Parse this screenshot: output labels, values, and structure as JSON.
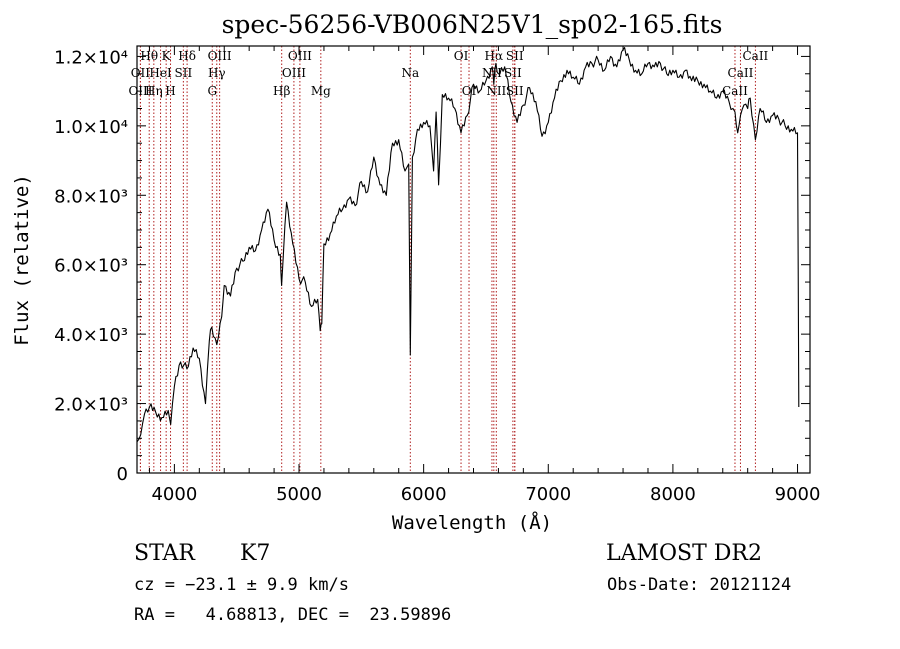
{
  "chart_data": {
    "type": "line",
    "title": "spec-56256-VB006N25V1_sp02-165.fits",
    "xlabel": "Wavelength (Å)",
    "ylabel": "Flux (relative)",
    "xlim": [
      3700,
      9100
    ],
    "ylim": [
      0,
      12300
    ],
    "x_ticks": [
      {
        "value": 4000,
        "label": "4000"
      },
      {
        "value": 5000,
        "label": "5000"
      },
      {
        "value": 6000,
        "label": "6000"
      },
      {
        "value": 7000,
        "label": "7000"
      },
      {
        "value": 8000,
        "label": "8000"
      },
      {
        "value": 9000,
        "label": "9000"
      }
    ],
    "y_ticks": [
      {
        "value": 0,
        "label": "0"
      },
      {
        "value": 2000,
        "label": "2.0×10³"
      },
      {
        "value": 4000,
        "label": "4.0×10³"
      },
      {
        "value": 6000,
        "label": "6.0×10³"
      },
      {
        "value": 8000,
        "label": "8.0×10³"
      },
      {
        "value": 10000,
        "label": "1.0×10⁴"
      },
      {
        "value": 12000,
        "label": "1.2×10⁴"
      }
    ],
    "series": [
      {
        "x": [
          3700,
          3730,
          3760,
          3800,
          3850,
          3900,
          3950,
          3970,
          4000,
          4050,
          4100,
          4150,
          4200,
          4250,
          4280,
          4300,
          4340,
          4380,
          4400,
          4450,
          4500,
          4550,
          4600,
          4650,
          4700,
          4750,
          4800,
          4850,
          4860,
          4900,
          4950,
          5000,
          5050,
          5100,
          5150,
          5170,
          5183,
          5200,
          5250,
          5300,
          5350,
          5400,
          5450,
          5500,
          5550,
          5600,
          5650,
          5700,
          5750,
          5800,
          5850,
          5880,
          5893,
          5910,
          5950,
          6000,
          6050,
          6080,
          6100,
          6120,
          6150,
          6200,
          6250,
          6300,
          6350,
          6400,
          6450,
          6500,
          6550,
          6563,
          6580,
          6600,
          6650,
          6700,
          6750,
          6800,
          6850,
          6900,
          6950,
          7000,
          7050,
          7100,
          7150,
          7200,
          7250,
          7300,
          7350,
          7400,
          7450,
          7500,
          7550,
          7600,
          7650,
          7700,
          7750,
          7800,
          7850,
          7900,
          7950,
          8000,
          8050,
          8100,
          8150,
          8200,
          8250,
          8300,
          8350,
          8400,
          8450,
          8498,
          8520,
          8542,
          8570,
          8600,
          8620,
          8662,
          8700,
          8750,
          8800,
          8850,
          8900,
          8950,
          9000,
          9010
        ],
        "values": [
          900,
          1100,
          1700,
          1900,
          1750,
          1600,
          1800,
          1400,
          2500,
          3200,
          3000,
          3600,
          3300,
          2000,
          3800,
          4200,
          3700,
          4500,
          5400,
          5100,
          5900,
          6100,
          6500,
          6400,
          7000,
          7600,
          6700,
          6300,
          5400,
          7800,
          6600,
          5600,
          5500,
          4800,
          5000,
          4100,
          4300,
          6600,
          6900,
          7400,
          7600,
          7900,
          7700,
          8400,
          8100,
          9100,
          8300,
          8000,
          9500,
          9600,
          8700,
          8900,
          3400,
          9100,
          9900,
          10100,
          10000,
          8700,
          10400,
          8300,
          10900,
          10800,
          10500,
          9800,
          10300,
          11200,
          11000,
          11300,
          11700,
          11200,
          11800,
          11500,
          11700,
          10700,
          10100,
          10600,
          11100,
          10700,
          9700,
          10100,
          10800,
          11300,
          11600,
          11400,
          11200,
          11700,
          11800,
          11900,
          11600,
          12000,
          11700,
          12200,
          11900,
          11600,
          11500,
          11800,
          11700,
          11800,
          11500,
          11600,
          11400,
          11600,
          11300,
          11300,
          11200,
          11000,
          10800,
          11000,
          10700,
          10400,
          9800,
          10300,
          10600,
          10500,
          10800,
          9600,
          10500,
          10100,
          10300,
          10200,
          10000,
          9900,
          9800,
          1900
        ]
      }
    ],
    "line_markers": [
      {
        "label": "Hθ",
        "x": 3798,
        "row": 1
      },
      {
        "label": "K",
        "x": 3934,
        "row": 1
      },
      {
        "label": "Hδ",
        "x": 4102,
        "row": 1
      },
      {
        "label": "OIII",
        "x": 4363,
        "row": 1
      },
      {
        "label": "OIII",
        "x": 5007,
        "row": 1
      },
      {
        "label": "OI",
        "x": 6300,
        "row": 1
      },
      {
        "label": "Hα",
        "x": 6563,
        "row": 1
      },
      {
        "label": "SII",
        "x": 6731,
        "row": 1
      },
      {
        "label": "CaII",
        "x": 8662,
        "row": 1
      },
      {
        "label": "OII",
        "x": 3727,
        "row": 2
      },
      {
        "label": "HeI",
        "x": 3889,
        "row": 2
      },
      {
        "label": "SII",
        "x": 4072,
        "row": 2
      },
      {
        "label": "Hγ",
        "x": 4340,
        "row": 2
      },
      {
        "label": "OIII",
        "x": 4959,
        "row": 2
      },
      {
        "label": "Na",
        "x": 5893,
        "row": 2
      },
      {
        "label": "NII",
        "x": 6548,
        "row": 2
      },
      {
        "label": "SII",
        "x": 6716,
        "row": 2
      },
      {
        "label": "CaII",
        "x": 8542,
        "row": 2
      },
      {
        "label": "OIII",
        "x": 3728,
        "row": 3
      },
      {
        "label": "Hη",
        "x": 3835,
        "row": 3
      },
      {
        "label": "H",
        "x": 3969,
        "row": 3
      },
      {
        "label": "G",
        "x": 4304,
        "row": 3
      },
      {
        "label": "Hβ",
        "x": 4861,
        "row": 3
      },
      {
        "label": "Mg",
        "x": 5175,
        "row": 3
      },
      {
        "label": "OI",
        "x": 6364,
        "row": 3
      },
      {
        "label": "NII",
        "x": 6583,
        "row": 3
      },
      {
        "label": "SII",
        "x": 6731,
        "row": 3
      },
      {
        "label": "CaII",
        "x": 8498,
        "row": 3
      }
    ]
  },
  "info": {
    "object_class": "STAR",
    "subclass": "K7",
    "survey": "LAMOST DR2",
    "cz": "cz = −23.1 ± 9.9 km/s",
    "obs_date": "Obs-Date: 20121124",
    "coords": "RA =   4.68813, DEC =  23.59896"
  }
}
